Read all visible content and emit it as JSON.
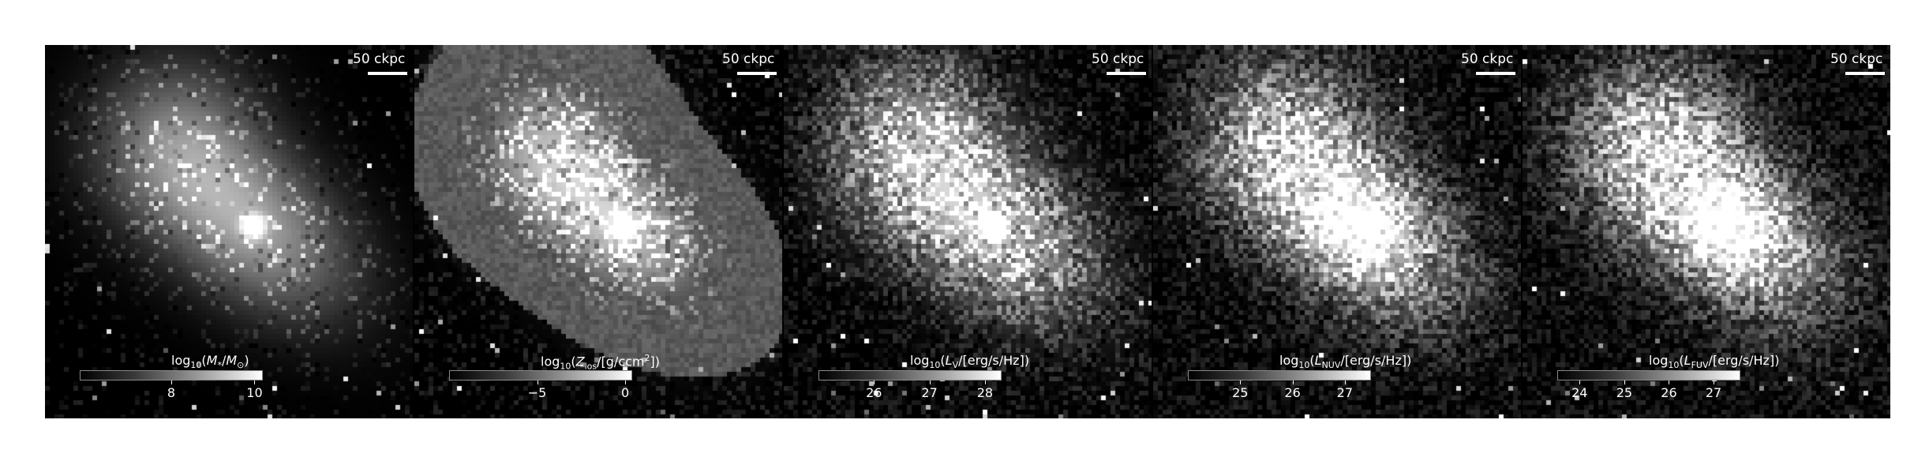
{
  "panels": [
    {
      "scalebar_label": "50 ckpc",
      "colorbar_title_html": "log<sub>10</sub>(<i>M</i><sub>*</sub>/<i>M</i><sub>⊙</sub>)",
      "tick_labels": [
        "8",
        "10"
      ],
      "tick_values": [
        8,
        10
      ],
      "cbar_range": [
        5.8,
        10.2
      ],
      "quantity": "stellar mass"
    },
    {
      "scalebar_label": "50 ckpc",
      "colorbar_title_html": "log<sub>10</sub>(<i>Z</i><sub>los</sub>/[g/ccm<sup>2</sup>])",
      "tick_labels": [
        "−5",
        "0"
      ],
      "tick_values": [
        -5,
        0
      ],
      "cbar_range": [
        -10,
        0.4
      ],
      "quantity": "column density"
    },
    {
      "scalebar_label": "50 ckpc",
      "colorbar_title_html": "log<sub>10</sub>(<i>L</i><sub>V</sub>/[erg/s/Hz])",
      "tick_labels": [
        "26",
        "27",
        "28"
      ],
      "tick_values": [
        26,
        27,
        28
      ],
      "cbar_range": [
        25.0,
        28.3
      ],
      "quantity": "V luminosity"
    },
    {
      "scalebar_label": "50 ckpc",
      "colorbar_title_html": "log<sub>10</sub>(<i>L</i><sub>NUV</sub>/[erg/s/Hz])",
      "tick_labels": [
        "25",
        "26",
        "27"
      ],
      "tick_values": [
        25,
        26,
        27
      ],
      "cbar_range": [
        24.0,
        27.5
      ],
      "quantity": "NUV luminosity"
    },
    {
      "scalebar_label": "50 ckpc",
      "colorbar_title_html": "log<sub>10</sub>(<i>L</i><sub>FUV</sub>/[erg/s/Hz])",
      "tick_labels": [
        "24",
        "25",
        "26",
        "27"
      ],
      "tick_values": [
        24,
        25,
        26,
        27
      ],
      "cbar_range": [
        23.5,
        27.6
      ],
      "quantity": "FUV luminosity"
    }
  ],
  "colors": {
    "background": "#000000",
    "foreground": "#ffffff"
  }
}
